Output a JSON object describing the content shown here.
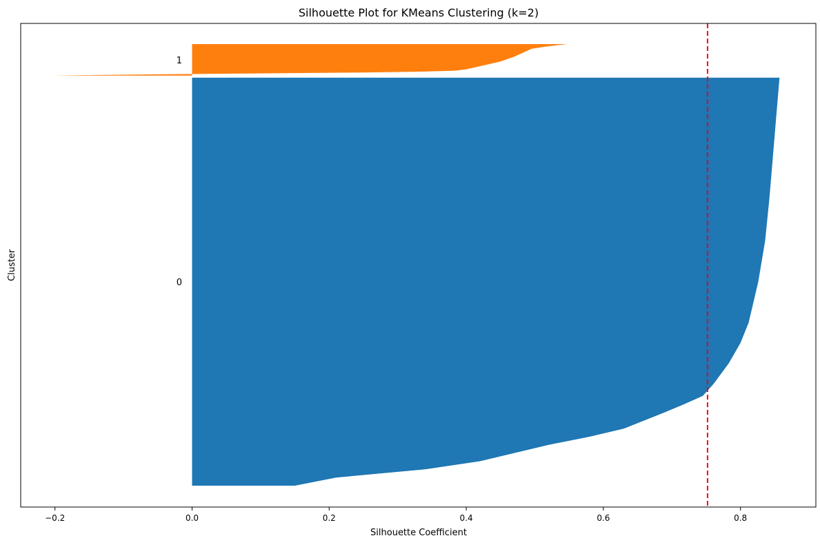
{
  "chart_data": {
    "type": "silhouette",
    "title": "Silhouette Plot for KMeans Clustering (k=2)",
    "xlabel": "Silhouette Coefficient",
    "ylabel": "Cluster",
    "xlim": [
      -0.25,
      0.91
    ],
    "xticks": [
      -0.2,
      0.0,
      0.2,
      0.4,
      0.6,
      0.8
    ],
    "xtick_labels": [
      "−0.2",
      "0.0",
      "0.2",
      "0.4",
      "0.6",
      "0.8"
    ],
    "grid": false,
    "average_silhouette": 0.752,
    "average_line_color": "#ff0000",
    "average_line_style": "dashed",
    "clusters": [
      {
        "label": "0",
        "color": "#1f77b4",
        "size_fraction": 0.905,
        "profile": [
          [
            0.0,
            0.857
          ],
          [
            0.1,
            0.852
          ],
          [
            0.2,
            0.847
          ],
          [
            0.3,
            0.842
          ],
          [
            0.4,
            0.836
          ],
          [
            0.5,
            0.826
          ],
          [
            0.6,
            0.812
          ],
          [
            0.65,
            0.8
          ],
          [
            0.7,
            0.783
          ],
          [
            0.75,
            0.761
          ],
          [
            0.78,
            0.745
          ],
          [
            0.8,
            0.718
          ],
          [
            0.82,
            0.69
          ],
          [
            0.84,
            0.66
          ],
          [
            0.86,
            0.63
          ],
          [
            0.88,
            0.58
          ],
          [
            0.9,
            0.52
          ],
          [
            0.92,
            0.47
          ],
          [
            0.94,
            0.42
          ],
          [
            0.96,
            0.34
          ],
          [
            0.98,
            0.21
          ],
          [
            1.0,
            0.15
          ]
        ]
      },
      {
        "label": "1",
        "color": "#ff7f0e",
        "size_fraction": 0.07,
        "profile": [
          [
            0.0,
            0.548
          ],
          [
            0.03,
            0.535
          ],
          [
            0.08,
            0.515
          ],
          [
            0.15,
            0.495
          ],
          [
            0.25,
            0.485
          ],
          [
            0.4,
            0.47
          ],
          [
            0.55,
            0.45
          ],
          [
            0.7,
            0.42
          ],
          [
            0.8,
            0.4
          ],
          [
            0.84,
            0.385
          ],
          [
            0.87,
            0.34
          ],
          [
            0.9,
            0.25
          ],
          [
            0.93,
            0.09
          ],
          [
            0.96,
            -0.06
          ],
          [
            0.98,
            -0.14
          ],
          [
            1.0,
            -0.205
          ]
        ]
      }
    ]
  }
}
